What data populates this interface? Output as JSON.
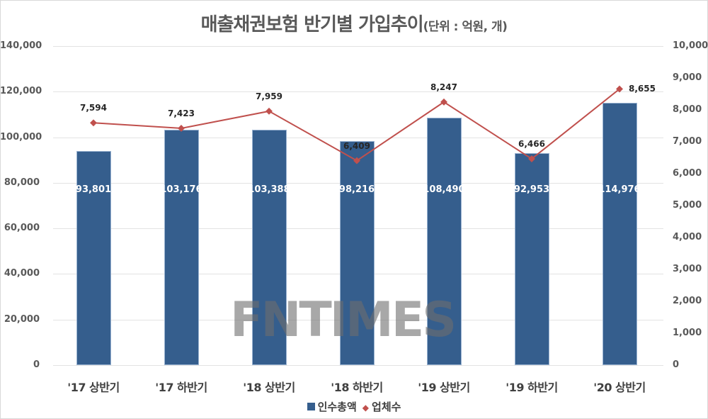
{
  "title": {
    "main": "매출채권보험 반기별 가입추이",
    "unit": "(단위 : 억원, 개)"
  },
  "watermark": "FNTIMES",
  "left_axis": [
    "0",
    "20,000",
    "40,000",
    "60,000",
    "80,000",
    "100,000",
    "120,000",
    "140,000"
  ],
  "right_axis": [
    "0",
    "1,000",
    "2,000",
    "3,000",
    "4,000",
    "5,000",
    "6,000",
    "7,000",
    "8,000",
    "9,000",
    "10,000"
  ],
  "categories": [
    "'17 상반기",
    "'17 하반기",
    "'18 상반기",
    "'18 하반기",
    "'19 상반기",
    "'19 하반기",
    "'20 상반기"
  ],
  "bar_labels": [
    "93,801",
    "103,176",
    "103,388",
    "98,216",
    "108,490",
    "92,953",
    "114,976"
  ],
  "line_labels": [
    "7,594",
    "7,423",
    "7,959",
    "6,409",
    "8,247",
    "6,466",
    "8,655"
  ],
  "legend": {
    "bar": "인수총액",
    "line": "업체수"
  },
  "colors": {
    "bar": "#355e8d",
    "line": "#c0504d"
  },
  "chart_data": {
    "type": "bar",
    "title": "매출채권보험 반기별 가입추이(단위 : 억원, 개)",
    "categories": [
      "'17 상반기",
      "'17 하반기",
      "'18 상반기",
      "'18 하반기",
      "'19 상반기",
      "'19 하반기",
      "'20 상반기"
    ],
    "series": [
      {
        "name": "인수총액",
        "type": "bar",
        "axis": "left",
        "values": [
          93801,
          103176,
          103388,
          98216,
          108490,
          92953,
          114976
        ]
      },
      {
        "name": "업체수",
        "type": "line",
        "axis": "right",
        "values": [
          7594,
          7423,
          7959,
          6409,
          8247,
          6466,
          8655
        ]
      }
    ],
    "xlabel": "",
    "ylabel": "",
    "ylim": [
      0,
      140000
    ],
    "y2lim": [
      0,
      10000
    ],
    "grid": true,
    "legend_position": "bottom"
  }
}
